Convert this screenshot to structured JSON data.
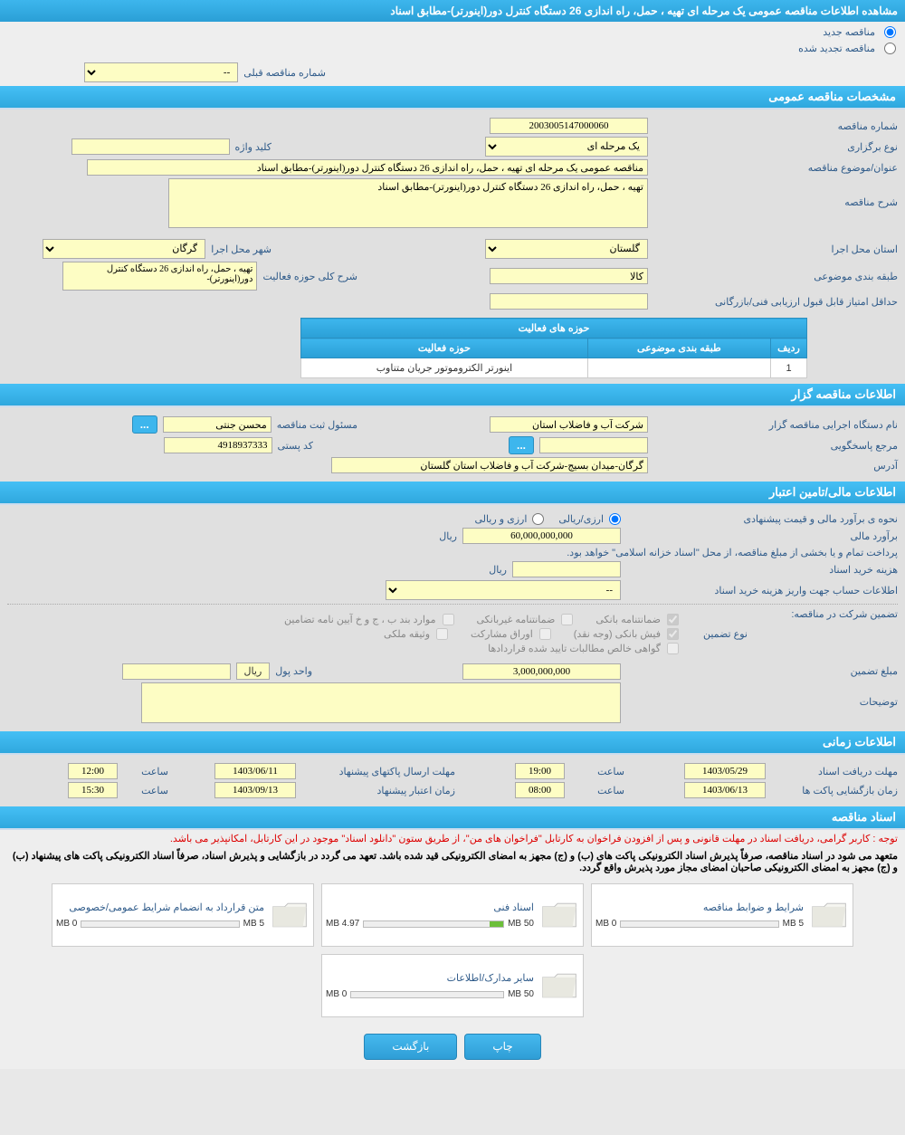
{
  "page": {
    "title": "مشاهده اطلاعات مناقصه عمومی یک مرحله ای تهیه ، حمل، راه اندازی 26 دستگاه کنترل دور(اینورتر)-مطابق اسناد"
  },
  "tender_type": {
    "new": "مناقصه جدید",
    "renewed": "مناقصه تجدید شده"
  },
  "prev_tender": {
    "label": "شماره مناقصه قبلی",
    "value": "--"
  },
  "sections": {
    "general": "مشخصات مناقصه عمومی",
    "organizer": "اطلاعات مناقصه گزار",
    "financial": "اطلاعات مالی/تامین اعتبار",
    "time": "اطلاعات زمانی",
    "docs": "اسناد مناقصه"
  },
  "general": {
    "tender_no_label": "شماره مناقصه",
    "tender_no": "2003005147000060",
    "type_label": "نوع برگزاری",
    "type_value": "یک مرحله ای",
    "keyword_label": "کلید واژه",
    "keyword": "",
    "subject_label": "عنوان/موضوع مناقصه",
    "subject": "مناقصه عمومی یک مرحله ای تهیه ، حمل، راه اندازی 26 دستگاه کنترل دور(اینورتر)-مطابق اسناد",
    "desc_label": "شرح مناقصه",
    "desc": "تهیه ، حمل، راه اندازی 26 دستگاه کنترل دور(اینورتر)-مطابق اسناد",
    "province_label": "استان محل اجرا",
    "province": "گلستان",
    "city_label": "شهر محل اجرا",
    "city": "گرگان",
    "category_label": "طبقه بندی موضوعی",
    "category": "کالا",
    "activity_area_label": "شرح کلی حوزه فعالیت",
    "activity_area": "تهیه ، حمل، راه اندازی 26 دستگاه کنترل دور(اینورتر)-",
    "min_score_label": "حداقل امتیاز قابل قبول ارزیابی فنی/بازرگانی",
    "min_score": "",
    "table_title": "حوزه های فعالیت",
    "th_row": "ردیف",
    "th_cat": "طبقه بندی موضوعی",
    "th_act": "حوزه فعالیت",
    "rows": [
      {
        "idx": "1",
        "cat": "",
        "act": "اینورتر الکتروموتور جریان متناوب"
      }
    ]
  },
  "organizer": {
    "exec_name_label": "نام دستگاه اجرایی مناقصه گزار",
    "exec_name": "شرکت آب و فاضلاب استان",
    "reg_officer_label": "مسئول ثبت مناقصه",
    "reg_officer": "محسن جنتی",
    "more_btn": "...",
    "contact_label": "مرجع پاسخگویی",
    "contact": "",
    "contact_btn": "...",
    "postcode_label": "کد پستی",
    "postcode": "4918937333",
    "address_label": "آدرس",
    "address": "گرگان-میدان بسیج-شرکت آب و فاضلاب استان گلستان"
  },
  "financial": {
    "price_method_label": "نحوه ی برآورد مالی و قیمت پیشنهادی",
    "opt_rial": "ارزی/ریالی",
    "opt_currency": "ارزی و ریالی",
    "estimate_label": "برآورد مالی",
    "estimate": "60,000,000,000",
    "unit_rial": "ریال",
    "treasury_note": "پرداخت تمام و یا بخشی از مبلغ مناقصه، از محل \"اسناد خزانه اسلامی\" خواهد بود.",
    "doc_price_label": "هزینه خرید اسناد",
    "doc_price": "",
    "account_label": "اطلاعات حساب جهت واریز هزینه خرید اسناد",
    "account_value": "--",
    "guarantee_section_label": "تضمین شرکت در مناقصه:",
    "guarantee_type_label": "نوع تضمین",
    "cb_bank_guarantee": "ضمانتنامه بانکی",
    "cb_nonbank_guarantee": "ضمانتنامه غیربانکی",
    "cb_bylaw": "موارد بند ب ، ج و خ آیین نامه تضامین",
    "cb_cash": "فیش بانکی (وجه نقد)",
    "cb_bonds": "اوراق مشارکت",
    "cb_property": "وثیقه ملکی",
    "cb_receivables": "گواهی خالص مطالبات تایید شده قراردادها",
    "guarantee_amount_label": "مبلغ تضمین",
    "guarantee_amount": "3,000,000,000",
    "currency_unit_label": "واحد پول",
    "currency_unit": "ریال",
    "currency_field": "",
    "notes_label": "توضیحات",
    "notes": ""
  },
  "time": {
    "receive_label": "مهلت دریافت اسناد",
    "receive_date": "1403/05/29",
    "receive_time_label": "ساعت",
    "receive_time": "19:00",
    "submit_label": "مهلت ارسال پاکتهای پیشنهاد",
    "submit_date": "1403/06/11",
    "submit_time_label": "ساعت",
    "submit_time": "12:00",
    "open_label": "زمان بازگشایی پاکت ها",
    "open_date": "1403/06/13",
    "open_time_label": "ساعت",
    "open_time": "08:00",
    "validity_label": "زمان اعتبار پیشنهاد",
    "validity_date": "1403/09/13",
    "validity_time_label": "ساعت",
    "validity_time": "15:30"
  },
  "docs": {
    "red_note": "توجه : کاربر گرامی، دریافت اسناد در مهلت قانونی و پس از افزودن فراخوان به کارتابل \"فراخوان های من\"، از طریق ستون \"دانلود اسناد\" موجود در این کارتابل، امکانپذیر می باشد.",
    "bold_note": "متعهد می شود در اسناد مناقصه، صرفاً پذیرش اسناد الکترونیکی پاکت های (ب) و (ج) مجهز به امضای الکترونیکی قید شده باشد. تعهد می گردد در بازگشایی و پذیرش اسناد، صرفاً اسناد الکترونیکی پاکت های پیشنهاد (ب) و (ج) مجهز به امضای الکترونیکی صاحبان امضای مجاز مورد پذیرش واقع گردد.",
    "cards": [
      {
        "title": "شرایط و ضوابط مناقصه",
        "used": "0 MB",
        "max": "5 MB",
        "pct": 0
      },
      {
        "title": "اسناد فنی",
        "used": "4.97 MB",
        "max": "50 MB",
        "pct": 10
      },
      {
        "title": "متن قرارداد به انضمام شرایط عمومی/خصوصی",
        "used": "0 MB",
        "max": "5 MB",
        "pct": 0
      },
      {
        "title": "سایر مدارک/اطلاعات",
        "used": "0 MB",
        "max": "50 MB",
        "pct": 0
      }
    ]
  },
  "buttons": {
    "print": "چاپ",
    "back": "بازگشت"
  }
}
